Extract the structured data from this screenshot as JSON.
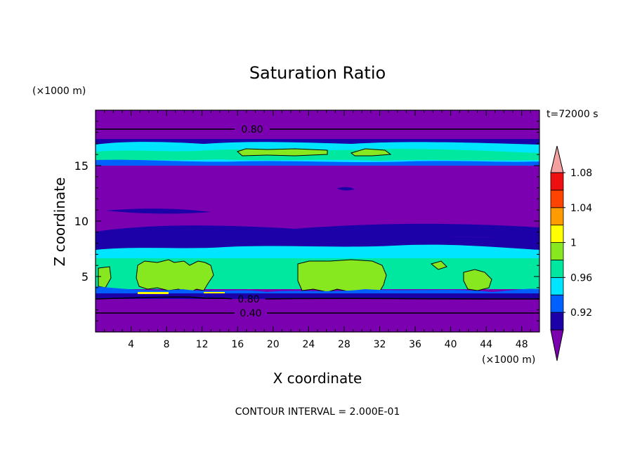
{
  "chart_data": {
    "type": "heatmap",
    "title": "Saturation Ratio",
    "time_label": "t=72000 s",
    "x_axis": {
      "label": "X coordinate",
      "unit_label": "(×1000 m)",
      "range": [
        0,
        50
      ],
      "ticks": [
        4,
        8,
        12,
        16,
        20,
        24,
        28,
        32,
        36,
        40,
        44,
        48
      ]
    },
    "y_axis": {
      "label": "Z coordinate",
      "unit_label": "(×1000 m)",
      "range": [
        0,
        20
      ],
      "ticks": [
        5,
        10,
        15
      ]
    },
    "contour_lines": [
      {
        "label": "0.80",
        "z": 18.2
      },
      {
        "label": "0.80",
        "z": 3.0
      },
      {
        "label": "0.40",
        "z": 1.8
      }
    ],
    "colorbar": {
      "levels": [
        "0.92",
        "0.96",
        "1",
        "1.04",
        "1.08"
      ],
      "colors": [
        "#7a00b0",
        "#1c00a8",
        "#0060ff",
        "#00e5ff",
        "#00e8a0",
        "#88e820",
        "#ffff00",
        "#ff9a00",
        "#ff4400",
        "#ee1010",
        "#f5a0a0"
      ],
      "extend": "both"
    },
    "bands": [
      {
        "z0": 0,
        "z1": 3.3,
        "value": "<0.90"
      },
      {
        "z0": 3.3,
        "z1": 4.0,
        "value": "0.92-0.96"
      },
      {
        "z0": 4.0,
        "z1": 6.8,
        "value": "0.98-1"
      },
      {
        "z0": 6.8,
        "z1": 7.6,
        "value": "0.94-0.96"
      },
      {
        "z0": 7.6,
        "z1": 15.0,
        "value": "<0.90"
      },
      {
        "z0": 15.0,
        "z1": 16.8,
        "value": "0.98-1"
      },
      {
        "z0": 16.8,
        "z1": 17.2,
        "value": "0.92"
      },
      {
        "z0": 17.2,
        "z1": 20,
        "value": "<0.90"
      }
    ],
    "footer": "CONTOUR INTERVAL = 2.000E-01"
  }
}
